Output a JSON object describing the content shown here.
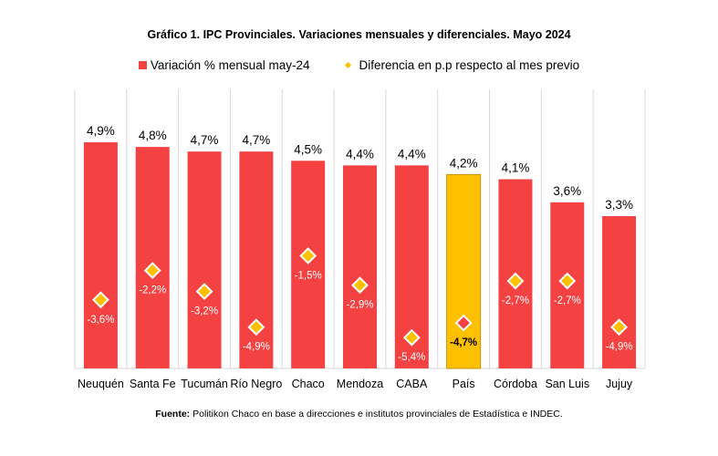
{
  "title": "Gráfico 1. IPC Provinciales. Variaciones mensuales y diferenciales. Mayo 2024",
  "legend": {
    "bar_label": "Variación % mensual may-24",
    "diamond_label": "Diferencia en p.p respecto al mes previo"
  },
  "source": {
    "prefix": "Fuente:",
    "text": "Politikon Chaco en base a direcciones e institutos provinciales de Estadística e INDEC."
  },
  "colors": {
    "bar": "#f44141",
    "highlight_bar": "#ffc000",
    "highlight_border": "#c99400",
    "diamond": "#ffc000",
    "diamond_highlight": "#f44141",
    "diamond_stroke": "#ffffff",
    "gridline": "#d9d9d9"
  },
  "chart_data": {
    "type": "bar",
    "title": "Gráfico 1. IPC Provinciales. Variaciones mensuales y diferenciales. Mayo 2024",
    "categories": [
      "Neuquén",
      "Santa Fe",
      "Tucumán",
      "Río Negro",
      "Chaco",
      "Mendoza",
      "CABA",
      "País",
      "Córdoba",
      "San Luis",
      "Jujuy"
    ],
    "series": [
      {
        "name": "Variación % mensual may-24",
        "kind": "bar",
        "values": [
          4.9,
          4.8,
          4.7,
          4.7,
          4.5,
          4.4,
          4.4,
          4.2,
          4.1,
          3.6,
          3.3
        ],
        "labels": [
          "4,9%",
          "4,8%",
          "4,7%",
          "4,7%",
          "4,5%",
          "4,4%",
          "4,4%",
          "4,2%",
          "4,1%",
          "3,6%",
          "3,3%"
        ]
      },
      {
        "name": "Diferencia en p.p respecto al mes previo",
        "kind": "marker",
        "values": [
          -3.6,
          -2.2,
          -3.2,
          -4.9,
          -1.5,
          -2.9,
          -5.4,
          -4.7,
          -2.7,
          -2.7,
          -4.9
        ],
        "labels": [
          "-3,6%",
          "-2,2%",
          "-3,2%",
          "-4,9%",
          "-1,5%",
          "-2,9%",
          "-5,4%",
          "-4,7%",
          "-2,7%",
          "-2,7%",
          "-4,9%"
        ]
      }
    ],
    "highlight_category": "País",
    "ylim_bar": [
      0,
      5.5
    ],
    "ylim_marker": [
      -7.0,
      0.0
    ],
    "grid": "vertical separators",
    "legend_position": "top"
  }
}
